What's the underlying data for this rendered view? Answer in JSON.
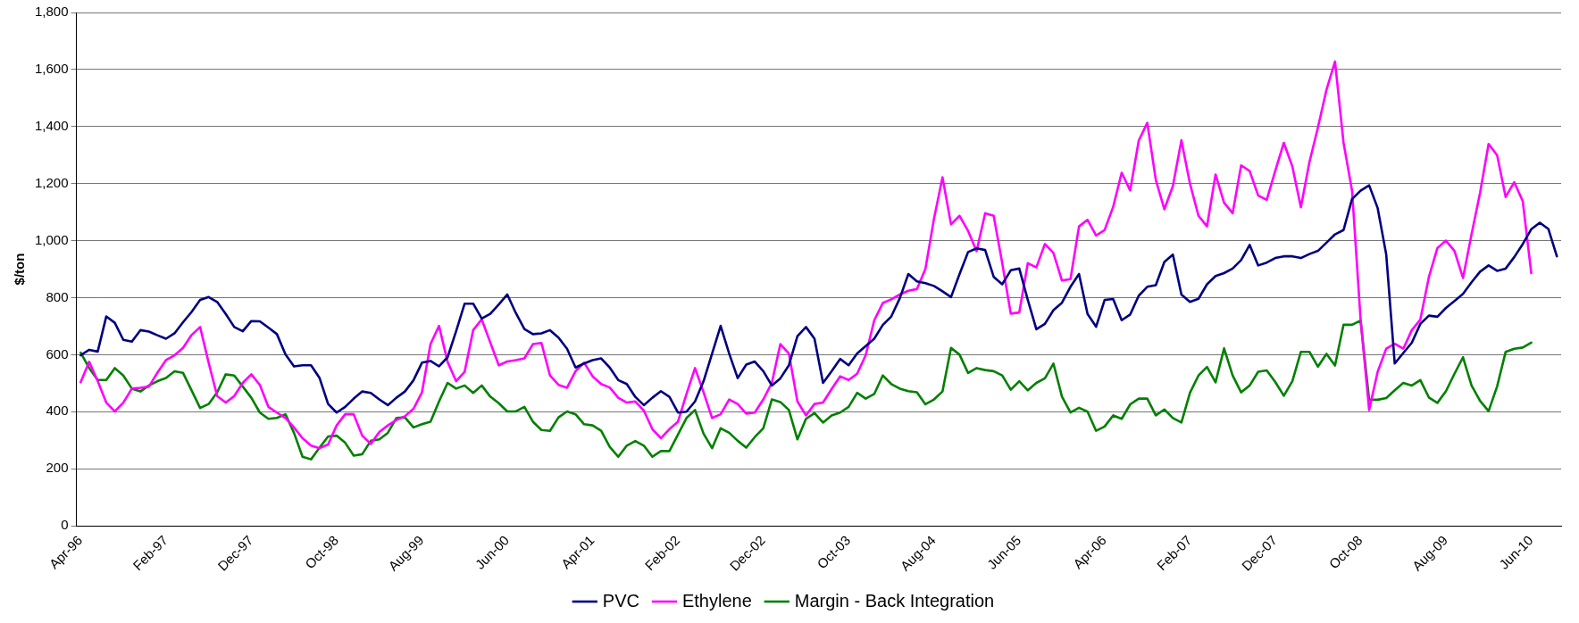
{
  "chart_data": {
    "type": "line",
    "ylabel": "$/ton",
    "legend": "bottom",
    "grid": "y",
    "line_style": "solid",
    "categories": [
      "Apr-96",
      null,
      null,
      null,
      null,
      null,
      null,
      null,
      null,
      null,
      "Feb-97",
      null,
      null,
      null,
      null,
      null,
      null,
      null,
      null,
      null,
      "Dec-97",
      null,
      null,
      null,
      null,
      null,
      null,
      null,
      null,
      null,
      "Oct-98",
      null,
      null,
      null,
      null,
      null,
      null,
      null,
      null,
      null,
      "Aug-99",
      null,
      null,
      null,
      null,
      null,
      null,
      null,
      null,
      null,
      "Jun-00",
      null,
      null,
      null,
      null,
      null,
      null,
      null,
      null,
      null,
      "Apr-01",
      null,
      null,
      null,
      null,
      null,
      null,
      null,
      null,
      null,
      "Feb-02",
      null,
      null,
      null,
      null,
      null,
      null,
      null,
      null,
      null,
      "Dec-02",
      null,
      null,
      null,
      null,
      null,
      null,
      null,
      null,
      null,
      "Oct-03",
      null,
      null,
      null,
      null,
      null,
      null,
      null,
      null,
      null,
      "Aug-04",
      null,
      null,
      null,
      null,
      null,
      null,
      null,
      null,
      null,
      "Jun-05",
      null,
      null,
      null,
      null,
      null,
      null,
      null,
      null,
      null,
      "Apr-06",
      null,
      null,
      null,
      null,
      null,
      null,
      null,
      null,
      null,
      "Feb-07",
      null,
      null,
      null,
      null,
      null,
      null,
      null,
      null,
      null,
      "Dec-07",
      null,
      null,
      null,
      null,
      null,
      null,
      null,
      null,
      null,
      "Oct-08",
      null,
      null,
      null,
      null,
      null,
      null,
      null,
      null,
      null,
      "Aug-09",
      null,
      null,
      null,
      null,
      null,
      null,
      null,
      null,
      null,
      "Jun-10",
      null,
      null,
      null
    ],
    "ylim": [
      0,
      1800
    ],
    "yticks": [
      0,
      200,
      400,
      600,
      800,
      {
        "value": 1000,
        "label": "1,000"
      },
      {
        "value": 1200,
        "label": "1,200"
      },
      {
        "value": 1400,
        "label": "1,400"
      },
      {
        "value": 1600,
        "label": "1,600"
      },
      {
        "value": 1800,
        "label": "1,800"
      }
    ],
    "series": [
      {
        "name": "PVC",
        "color": "#000080",
        "values": [
          598,
          617,
          611,
          734,
          712,
          652,
          646,
          686,
          681,
          668,
          656,
          675,
          714,
          750,
          792,
          802,
          785,
          743,
          697,
          682,
          718,
          717,
          695,
          672,
          601,
          559,
          563,
          563,
          518,
          427,
          397,
          417,
          446,
          471,
          466,
          443,
          423,
          449,
          471,
          510,
          572,
          578,
          559,
          591,
          682,
          779,
          779,
          727,
          743,
          776,
          811,
          746,
          690,
          672,
          675,
          686,
          660,
          621,
          555,
          569,
          581,
          587,
          555,
          511,
          497,
          452,
          423,
          449,
          472,
          452,
          397,
          400,
          436,
          507,
          604,
          701,
          604,
          518,
          565,
          576,
          542,
          492,
          517,
          563,
          665,
          697,
          656,
          501,
          542,
          585,
          563,
          604,
          630,
          656,
          704,
          734,
          798,
          883,
          857,
          851,
          841,
          822,
          802,
          883,
          960,
          973,
          967,
          873,
          847,
          896,
          902,
          792,
          689,
          708,
          756,
          782,
          838,
          883,
          743,
          698,
          792,
          795,
          721,
          741,
          807,
          838,
          844,
          925,
          951,
          811,
          785,
          796,
          847,
          876,
          886,
          902,
          932,
          985,
          913,
          923,
          939,
          945,
          945,
          939,
          953,
          964,
          993,
          1022,
          1037,
          1146,
          1175,
          1194,
          1114,
          952,
          569,
          606,
          642,
          708,
          737,
          733,
          764,
          788,
          813,
          854,
          891,
          913,
          894,
          902,
          942,
          988,
          1040,
          1063,
          1041,
          945
        ]
      },
      {
        "name": "Ethylene",
        "color": "#ff00ff",
        "values": [
          503,
          575,
          507,
          432,
          401,
          432,
          481,
          484,
          488,
          537,
          581,
          598,
          624,
          669,
          697,
          572,
          455,
          432,
          455,
          501,
          531,
          494,
          417,
          397,
          378,
          345,
          307,
          281,
          272,
          285,
          352,
          391,
          391,
          316,
          287,
          329,
          352,
          371,
          384,
          410,
          468,
          637,
          701,
          575,
          507,
          540,
          686,
          724,
          643,
          563,
          576,
          581,
          587,
          637,
          641,
          527,
          494,
          484,
          542,
          572,
          524,
          497,
          485,
          449,
          432,
          436,
          404,
          339,
          307,
          339,
          365,
          462,
          553,
          468,
          378,
          391,
          443,
          427,
          393,
          397,
          443,
          501,
          637,
          604,
          436,
          387,
          427,
          432,
          479,
          524,
          511,
          533,
          598,
          720,
          781,
          794,
          811,
          824,
          830,
          901,
          1076,
          1222,
          1057,
          1087,
          1034,
          963,
          1096,
          1087,
          921,
          744,
          748,
          921,
          906,
          988,
          957,
          860,
          865,
          1050,
          1073,
          1018,
          1037,
          1118,
          1238,
          1176,
          1351,
          1413,
          1213,
          1110,
          1191,
          1352,
          1200,
          1087,
          1050,
          1232,
          1133,
          1096,
          1264,
          1244,
          1158,
          1143,
          1245,
          1343,
          1260,
          1117,
          1275,
          1397,
          1529,
          1628,
          1343,
          1175,
          723,
          406,
          540,
          621,
          638,
          621,
          686,
          723,
          872,
          974,
          1000,
          964,
          869,
          1022,
          1168,
          1339,
          1299,
          1153,
          1205,
          1139,
          886,
          null,
          null,
          null
        ]
      },
      {
        "name": "Margin - Back Integration",
        "color": "#008000",
        "values": [
          607,
          553,
          511,
          511,
          553,
          527,
          481,
          471,
          492,
          507,
          518,
          542,
          536,
          475,
          413,
          427,
          468,
          531,
          527,
          488,
          449,
          397,
          375,
          378,
          391,
          326,
          242,
          233,
          274,
          313,
          316,
          291,
          246,
          251,
          298,
          303,
          326,
          378,
          380,
          345,
          356,
          365,
          436,
          501,
          481,
          492,
          466,
          492,
          453,
          430,
          401,
          401,
          417,
          365,
          336,
          333,
          380,
          401,
          391,
          356,
          352,
          333,
          277,
          242,
          281,
          297,
          281,
          242,
          262,
          262,
          320,
          378,
          406,
          323,
          272,
          342,
          326,
          298,
          274,
          311,
          342,
          443,
          434,
          406,
          303,
          375,
          395,
          362,
          387,
          397,
          417,
          466,
          446,
          462,
          527,
          497,
          481,
          472,
          468,
          426,
          443,
          471,
          624,
          600,
          536,
          553,
          546,
          542,
          527,
          477,
          507,
          475,
          501,
          517,
          569,
          453,
          397,
          414,
          400,
          333,
          348,
          387,
          375,
          426,
          446,
          446,
          387,
          408,
          378,
          362,
          466,
          527,
          557,
          503,
          622,
          527,
          468,
          492,
          540,
          545,
          504,
          456,
          507,
          610,
          610,
          558,
          603,
          562,
          705,
          705,
          720,
          442,
          442,
          448,
          475,
          501,
          492,
          511,
          450,
          431,
          472,
          533,
          591,
          492,
          438,
          402,
          489,
          610,
          621,
          625,
          642,
          null,
          null,
          null
        ]
      }
    ]
  }
}
